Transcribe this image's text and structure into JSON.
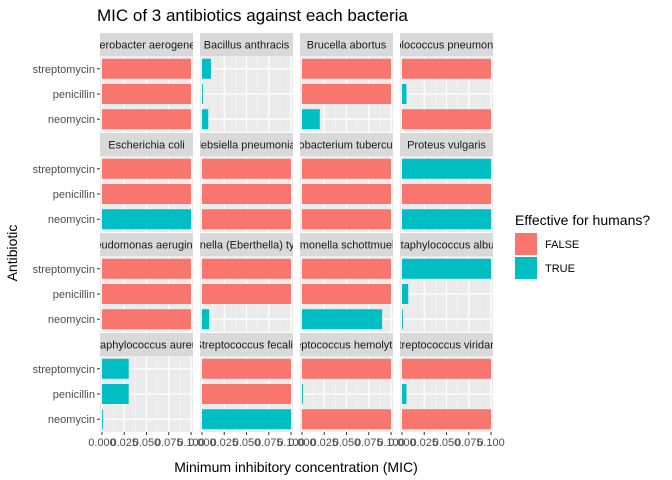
{
  "chart_data": {
    "type": "bar",
    "orientation": "horizontal",
    "faceted": true,
    "facet_grid": [
      4,
      4
    ],
    "title": "MIC of 3 antibiotics against each bacteria",
    "xlabel": "Minimum inhibitory concentration (MIC)",
    "ylabel": "Antibiotic",
    "xlim": [
      0,
      0.1
    ],
    "x_ticks": [
      "0.000",
      "0.025",
      "0.050",
      "0.075",
      "0.100"
    ],
    "categories": [
      "streptomycin",
      "penicillin",
      "neomycin"
    ],
    "legend": {
      "title": "Effective for humans?",
      "placement": "right",
      "entries": [
        {
          "label": "FALSE",
          "color": "#F8766D"
        },
        {
          "label": "TRUE",
          "color": "#00BFC4"
        }
      ]
    },
    "grid": true,
    "panels": [
      {
        "strip": "Aerobacter aerogenes",
        "values": [
          0.1,
          0.1,
          0.1
        ],
        "effective": [
          false,
          false,
          false
        ]
      },
      {
        "strip": "Bacillus anthracis",
        "values": [
          0.01,
          0.001,
          0.007
        ],
        "effective": [
          true,
          true,
          true
        ]
      },
      {
        "strip": "Brucella abortus",
        "values": [
          0.1,
          0.1,
          0.02
        ],
        "effective": [
          false,
          false,
          true
        ]
      },
      {
        "strip": "Diplococcus pneumoniae",
        "values": [
          0.1,
          0.005,
          0.1
        ],
        "effective": [
          false,
          true,
          false
        ]
      },
      {
        "strip": "Escherichia coli",
        "values": [
          0.1,
          0.1,
          0.1
        ],
        "effective": [
          false,
          false,
          true
        ]
      },
      {
        "strip": "Klebsiella pneumoniae",
        "values": [
          0.1,
          0.1,
          0.1
        ],
        "effective": [
          false,
          false,
          false
        ]
      },
      {
        "strip": "Mycobacterium tuberculosis",
        "values": [
          0.1,
          0.1,
          0.1
        ],
        "effective": [
          false,
          false,
          false
        ]
      },
      {
        "strip": "Proteus vulgaris",
        "values": [
          0.1,
          0.1,
          0.1
        ],
        "effective": [
          true,
          false,
          true
        ]
      },
      {
        "strip": "Pseudomonas aeruginosa",
        "values": [
          0.1,
          0.1,
          0.1
        ],
        "effective": [
          false,
          false,
          false
        ]
      },
      {
        "strip": "Salmonella (Eberthella) typhosa",
        "values": [
          0.1,
          0.1,
          0.008
        ],
        "effective": [
          false,
          false,
          true
        ]
      },
      {
        "strip": "Salmonella schottmuelleri",
        "values": [
          0.1,
          0.1,
          0.09
        ],
        "effective": [
          false,
          false,
          true
        ]
      },
      {
        "strip": "Staphylococcus albus",
        "values": [
          0.1,
          0.007,
          0.001
        ],
        "effective": [
          true,
          true,
          true
        ]
      },
      {
        "strip": "Staphylococcus aureus",
        "values": [
          0.03,
          0.03,
          0.001
        ],
        "effective": [
          true,
          true,
          true
        ]
      },
      {
        "strip": "Streptococcus fecalis",
        "values": [
          0.1,
          0.1,
          0.1
        ],
        "effective": [
          false,
          false,
          true
        ]
      },
      {
        "strip": "Streptococcus hemolyticus",
        "values": [
          0.1,
          0.001,
          0.1
        ],
        "effective": [
          false,
          true,
          false
        ]
      },
      {
        "strip": "Streptococcus viridans",
        "values": [
          0.1,
          0.005,
          0.1
        ],
        "effective": [
          false,
          true,
          false
        ]
      }
    ]
  }
}
